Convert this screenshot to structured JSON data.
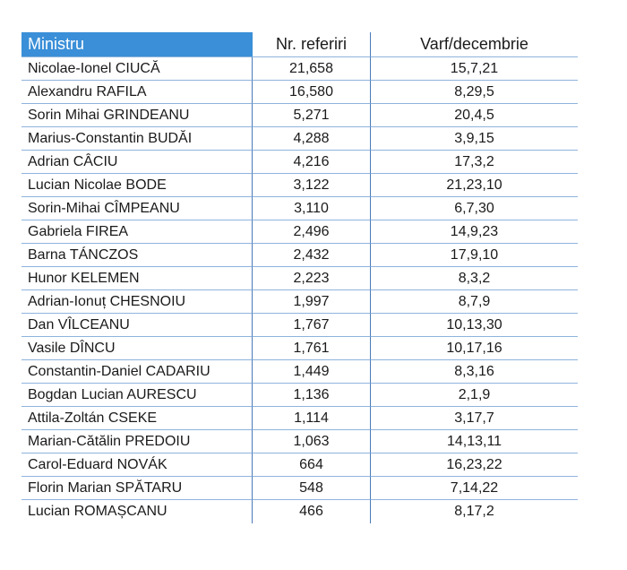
{
  "table": {
    "headers": [
      "Ministru",
      "Nr. referiri",
      "Varf/decembrie"
    ],
    "header_color": "#3a8fd8",
    "rows": [
      {
        "name": "Nicolae-Ionel CIUCĂ",
        "refs": "21,658",
        "peak": "15,7,21"
      },
      {
        "name": "Alexandru RAFILA",
        "refs": "16,580",
        "peak": "8,29,5"
      },
      {
        "name": "Sorin Mihai GRINDEANU",
        "refs": "5,271",
        "peak": "20,4,5"
      },
      {
        "name": "Marius-Constantin BUDĂI",
        "refs": "4,288",
        "peak": "3,9,15"
      },
      {
        "name": "Adrian CÂCIU",
        "refs": "4,216",
        "peak": "17,3,2"
      },
      {
        "name": "Lucian Nicolae BODE",
        "refs": "3,122",
        "peak": "21,23,10"
      },
      {
        "name": "Sorin-Mihai CÎMPEANU",
        "refs": "3,110",
        "peak": "6,7,30"
      },
      {
        "name": "Gabriela FIREA",
        "refs": "2,496",
        "peak": "14,9,23"
      },
      {
        "name": "Barna TÁNCZOS",
        "refs": "2,432",
        "peak": "17,9,10"
      },
      {
        "name": "Hunor KELEMEN",
        "refs": "2,223",
        "peak": "8,3,2"
      },
      {
        "name": "Adrian-Ionuț CHESNOIU",
        "refs": "1,997",
        "peak": "8,7,9"
      },
      {
        "name": "Dan VÎLCEANU",
        "refs": "1,767",
        "peak": "10,13,30"
      },
      {
        "name": "Vasile DÎNCU",
        "refs": "1,761",
        "peak": "10,17,16"
      },
      {
        "name": "Constantin-Daniel CADARIU",
        "refs": "1,449",
        "peak": "8,3,16"
      },
      {
        "name": "Bogdan Lucian AURESCU",
        "refs": "1,136",
        "peak": "2,1,9"
      },
      {
        "name": "Attila-Zoltán CSEKE",
        "refs": "1,114",
        "peak": "3,17,7"
      },
      {
        "name": "Marian-Cătălin PREDOIU",
        "refs": "1,063",
        "peak": "14,13,11"
      },
      {
        "name": "Carol-Eduard NOVÁK",
        "refs": "664",
        "peak": "16,23,22"
      },
      {
        "name": "Florin Marian SPĂTARU",
        "refs": "548",
        "peak": "7,14,22"
      },
      {
        "name": "Lucian ROMAȘCANU",
        "refs": "466",
        "peak": "8,17,2"
      }
    ]
  }
}
